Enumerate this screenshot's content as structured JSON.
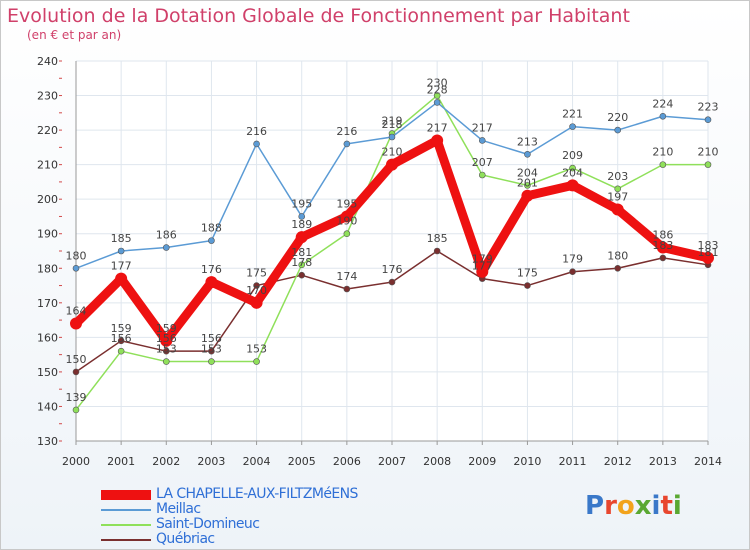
{
  "title": "Evolution de la Dotation Globale de Fonctionnement par Habitant",
  "subtitle": "(en € et par an)",
  "logo": {
    "text": "Proxiti",
    "colors": [
      "#3a78c9",
      "#e8462e",
      "#f2a31b",
      "#5aa832",
      "#3a78c9",
      "#e8462e",
      "#5aa832"
    ]
  },
  "colors": {
    "accent": "#d0406a",
    "grid": "#dfe6ee",
    "axis": "#999999"
  },
  "chart_data": {
    "type": "line",
    "title": "Evolution de la Dotation Globale de Fonctionnement par Habitant",
    "subtitle": "(en € et par an)",
    "x": [
      "2000",
      "2001",
      "2002",
      "2003",
      "2004",
      "2005",
      "2006",
      "2007",
      "2008",
      "2009",
      "2010",
      "2011",
      "2012",
      "2013",
      "2014"
    ],
    "ylim": [
      130,
      240
    ],
    "yticks": [
      130,
      140,
      150,
      160,
      170,
      180,
      190,
      200,
      210,
      220,
      230,
      240
    ],
    "grid": true,
    "legend": "bottom-left",
    "series": [
      {
        "name": "LA CHAPELLE-AUX-FILTZMéENS",
        "color": "#ee1111",
        "values": [
          164,
          177,
          159,
          176,
          170,
          189,
          195,
          210,
          217,
          179,
          201,
          204,
          197,
          186,
          183
        ]
      },
      {
        "name": "Meillac",
        "color": "#5b9bd5",
        "values": [
          180,
          185,
          186,
          188,
          216,
          195,
          216,
          218,
          228,
          217,
          213,
          221,
          220,
          224,
          223
        ]
      },
      {
        "name": "Saint-Domineuc",
        "color": "#8fe05a",
        "values": [
          139,
          156,
          153,
          153,
          153,
          181,
          190,
          219,
          230,
          207,
          204,
          209,
          203,
          210,
          210
        ]
      },
      {
        "name": "Québriac",
        "color": "#7a2f2f",
        "values": [
          150,
          159,
          156,
          156,
          175,
          178,
          174,
          176,
          185,
          177,
          175,
          179,
          180,
          183,
          181
        ]
      }
    ]
  }
}
